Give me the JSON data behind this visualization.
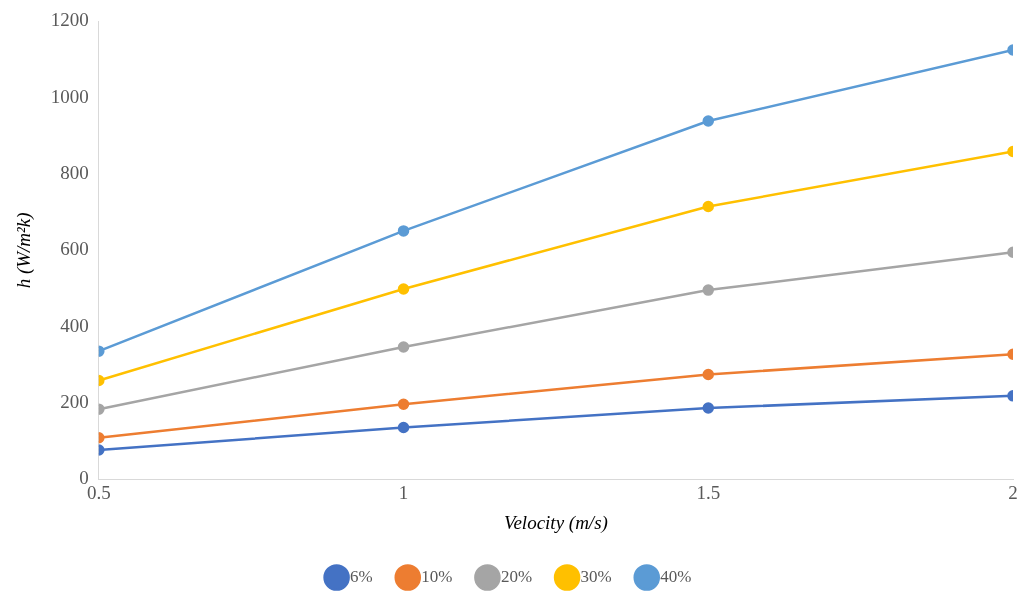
{
  "chart_data": {
    "type": "line",
    "x": [
      0.5,
      1,
      1.5,
      2
    ],
    "xlabel": "Velocity (m/s)",
    "ylabel": "h (W/m²k)",
    "xlim": [
      0.5,
      2
    ],
    "xticks": [
      0.5,
      1,
      1.5,
      2
    ],
    "ylim": [
      0,
      1200
    ],
    "yticks": [
      0,
      200,
      400,
      600,
      800,
      1000,
      1200
    ],
    "grid": false,
    "legend": "bottom",
    "marker": "circle",
    "line_style": "solid",
    "series": [
      {
        "name": "6%",
        "color": "#4472c4",
        "values": [
          77,
          136,
          187,
          219
        ]
      },
      {
        "name": "10%",
        "color": "#ed7d31",
        "values": [
          109,
          197,
          275,
          328
        ]
      },
      {
        "name": "20%",
        "color": "#a5a5a5",
        "values": [
          184,
          347,
          496,
          595
        ]
      },
      {
        "name": "30%",
        "color": "#ffc000",
        "values": [
          259,
          499,
          715,
          859
        ]
      },
      {
        "name": "40%",
        "color": "#5b9bd5",
        "values": [
          336,
          651,
          939,
          1125
        ]
      }
    ]
  }
}
